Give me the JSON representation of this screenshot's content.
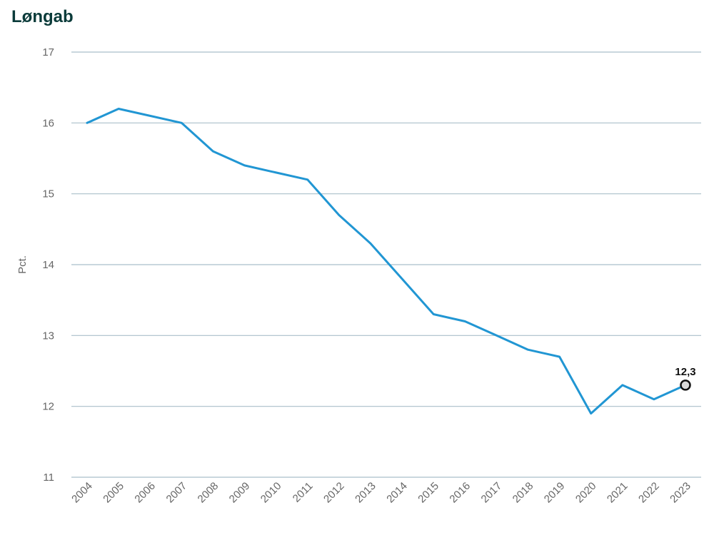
{
  "chart_data": {
    "type": "line",
    "title": "Løngab",
    "xlabel": "",
    "ylabel": "Pct.",
    "x": [
      "2004",
      "2005",
      "2006",
      "2007",
      "2008",
      "2009",
      "2010",
      "2011",
      "2012",
      "2013",
      "2014",
      "2015",
      "2016",
      "2017",
      "2018",
      "2019",
      "2020",
      "2021",
      "2022",
      "2023"
    ],
    "series": [
      {
        "values": [
          16.0,
          16.2,
          16.1,
          16.0,
          15.6,
          15.4,
          15.3,
          15.2,
          14.7,
          14.3,
          13.8,
          13.3,
          13.2,
          13.0,
          12.8,
          12.7,
          11.9,
          12.3,
          12.1,
          12.3
        ]
      }
    ],
    "yticks": [
      "11",
      "12",
      "13",
      "14",
      "15",
      "16",
      "17"
    ],
    "ylim": [
      11,
      17
    ],
    "grid": true,
    "legend": "none",
    "annotations": [
      {
        "x": "2023",
        "label": "12,3"
      }
    ],
    "line_color": "#2196d3",
    "grid_color": "#a9bfc9"
  }
}
